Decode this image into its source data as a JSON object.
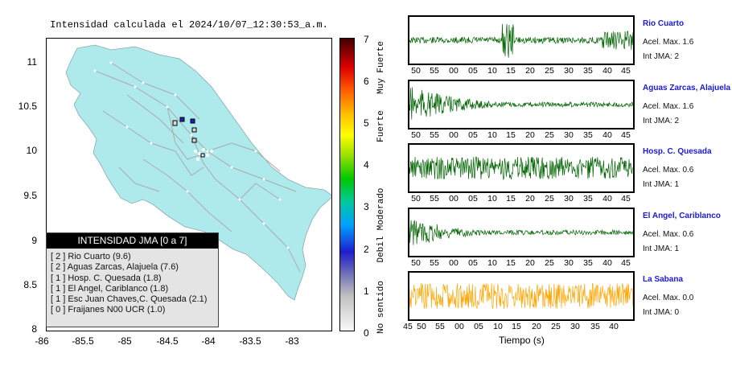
{
  "map": {
    "title": "Intensidad calculada el 2024/10/07_12:30:53_a.m.",
    "y_ticks": [
      "11",
      "10.5",
      "10",
      "9.5",
      "9",
      "8.5",
      "8"
    ],
    "x_ticks": [
      "-86",
      "-85.5",
      "-85",
      "-84.5",
      "-84",
      "-83.5",
      "-83"
    ],
    "legend_title": "INTENSIDAD JMA [0 a 7]",
    "legend_items": [
      "[ 2 ] Rio Cuarto (9.6)",
      "[ 2 ] Aguas Zarcas, Alajuela (7.6)",
      "[ 1 ] Hosp. C. Quesada (1.8)",
      "[ 1 ] El Angel, Cariblanco (1.8)",
      "[ 1 ] Esc Juan Chaves,C. Quesada (2.1)",
      "[ 0 ] Fraijanes N00 UCR (1.0)"
    ]
  },
  "colorbar": {
    "numbers": [
      "7",
      "6",
      "5",
      "4",
      "3",
      "2",
      "1",
      "0"
    ],
    "words": [
      "Muy Fuerte",
      "Fuerte",
      "Moderado",
      "Debil",
      "No sentido"
    ]
  },
  "stations": [
    {
      "name": "Rio Cuarto",
      "accel": "Acel. Max. 1.6",
      "jma": "Int JMA: 2",
      "color": "#006400",
      "ticks": [
        "50",
        "55",
        "00",
        "05",
        "10",
        "15",
        "20",
        "25",
        "30",
        "35",
        "40",
        "45"
      ]
    },
    {
      "name": "Aguas Zarcas, Alajuela",
      "accel": "Acel. Max. 1.6",
      "jma": "Int JMA: 2",
      "color": "#006400",
      "ticks": [
        "50",
        "55",
        "00",
        "05",
        "10",
        "15",
        "20",
        "25",
        "30",
        "35",
        "40",
        "45"
      ]
    },
    {
      "name": "Hosp. C. Quesada",
      "accel": "Acel. Max. 0.6",
      "jma": "Int JMA: 1",
      "color": "#006400",
      "ticks": [
        "50",
        "55",
        "00",
        "05",
        "10",
        "15",
        "20",
        "25",
        "30",
        "35",
        "40",
        "45"
      ]
    },
    {
      "name": "El Angel, Cariblanco",
      "accel": "Acel. Max. 0.6",
      "jma": "Int JMA: 1",
      "color": "#006400",
      "ticks": [
        "50",
        "55",
        "00",
        "05",
        "10",
        "15",
        "20",
        "25",
        "30",
        "35",
        "40",
        "45"
      ]
    },
    {
      "name": "La Sabana",
      "accel": "Acel. Max. 0.0",
      "jma": "Int JMA: 0",
      "color": "#ffa500",
      "ticks": [
        "45",
        "50",
        "55",
        "00",
        "05",
        "10",
        "15",
        "20",
        "25",
        "30",
        "35",
        "40"
      ]
    }
  ],
  "xlabel": "Tiempo (s)",
  "chart_data": {
    "type": "line",
    "title": "Intensidad calculada el 2024/10/07_12:30:53_a.m.",
    "xlabel": "Tiempo (s)",
    "colorbar_range": [
      0,
      7
    ],
    "map_xlim": [
      -86,
      -82.6
    ],
    "map_ylim": [
      8,
      11.3
    ],
    "series": [
      {
        "name": "Rio Cuarto",
        "intensity": 2,
        "accel_max": 1.6
      },
      {
        "name": "Aguas Zarcas, Alajuela",
        "intensity": 2,
        "accel_max": 1.6
      },
      {
        "name": "Hosp. C. Quesada",
        "intensity": 1,
        "accel_max": 0.6
      },
      {
        "name": "El Angel, Cariblanco",
        "intensity": 1,
        "accel_max": 0.6
      },
      {
        "name": "La Sabana",
        "intensity": 0,
        "accel_max": 0.0
      }
    ]
  }
}
